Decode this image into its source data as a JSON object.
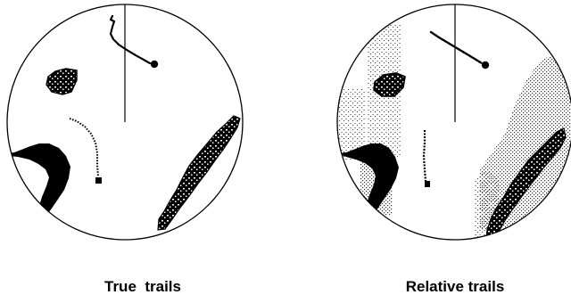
{
  "panels": [
    {
      "id": "true-trails",
      "caption": "True  trails"
    },
    {
      "id": "relative-trails",
      "caption": "Relative trails"
    }
  ],
  "colors": {
    "background": "#ffffff",
    "ink": "#000000",
    "stipple": "#333333"
  }
}
